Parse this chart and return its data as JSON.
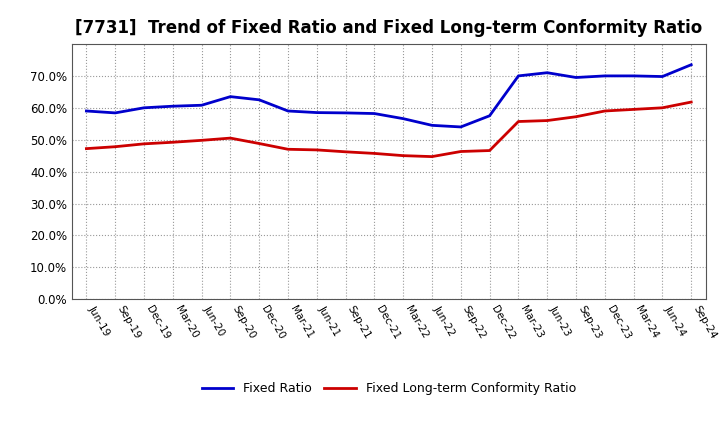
{
  "title": "[7731]  Trend of Fixed Ratio and Fixed Long-term Conformity Ratio",
  "x_labels": [
    "Jun-19",
    "Sep-19",
    "Dec-19",
    "Mar-20",
    "Jun-20",
    "Sep-20",
    "Dec-20",
    "Mar-21",
    "Jun-21",
    "Sep-21",
    "Dec-21",
    "Mar-22",
    "Jun-22",
    "Sep-22",
    "Dec-22",
    "Mar-23",
    "Jun-23",
    "Sep-23",
    "Dec-23",
    "Mar-24",
    "Jun-24",
    "Sep-24"
  ],
  "fixed_ratio": [
    0.59,
    0.584,
    0.6,
    0.605,
    0.608,
    0.635,
    0.625,
    0.59,
    0.585,
    0.584,
    0.582,
    0.566,
    0.545,
    0.54,
    0.575,
    0.7,
    0.71,
    0.695,
    0.7,
    0.7,
    0.698,
    0.735
  ],
  "fixed_lt_ratio": [
    0.472,
    0.478,
    0.487,
    0.492,
    0.498,
    0.505,
    0.488,
    0.47,
    0.468,
    0.462,
    0.457,
    0.45,
    0.447,
    0.463,
    0.466,
    0.557,
    0.56,
    0.572,
    0.59,
    0.595,
    0.6,
    0.618
  ],
  "fixed_ratio_color": "#0000cc",
  "fixed_lt_ratio_color": "#cc0000",
  "ylim": [
    0.0,
    0.8
  ],
  "yticks": [
    0.0,
    0.1,
    0.2,
    0.3,
    0.4,
    0.5,
    0.6,
    0.7
  ],
  "background_color": "#ffffff",
  "grid_color": "#999999",
  "title_fontsize": 12,
  "legend_fixed": "Fixed Ratio",
  "legend_lt": "Fixed Long-term Conformity Ratio"
}
